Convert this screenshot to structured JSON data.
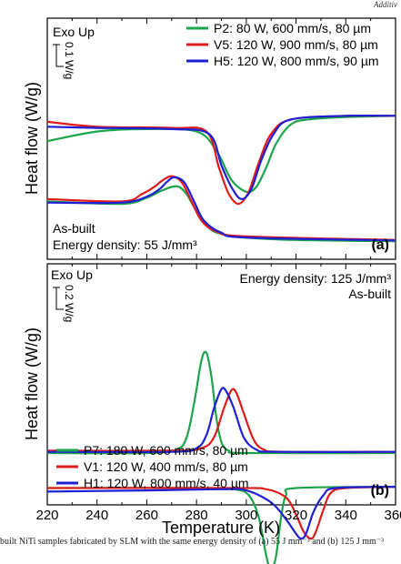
{
  "corner_label": "Additiv",
  "caption": "built NiTi samples fabricated by SLM with the same energy density of (a) 55 J mm⁻³ and (b) 125 J mm⁻³",
  "shared": {
    "xlabel": "Temperature (K)",
    "ylabel": "Heat flow (W/g)",
    "xlim": [
      220,
      360
    ],
    "xticks": [
      220,
      240,
      260,
      280,
      300,
      320,
      340,
      360
    ]
  },
  "chart_data": [
    {
      "type": "line",
      "panel_label": "(a)",
      "note_top": "Exo Up",
      "scale_bar": "0.1 W/g",
      "note_bottom_1": "As-built",
      "note_bottom_2": "Energy density: 55 J/mm³",
      "legend_position": "top-right",
      "series": [
        {
          "name": "P2: 80 W, 600 mm/s, 80 µm",
          "color": "#1aa54a",
          "cooling": [
            [
              220,
              0.76
            ],
            [
              250,
              0.77
            ],
            [
              260,
              0.745
            ],
            [
              265,
              0.72
            ],
            [
              270,
              0.7
            ],
            [
              273,
              0.7
            ],
            [
              276,
              0.73
            ],
            [
              280,
              0.8
            ],
            [
              285,
              0.87
            ],
            [
              290,
              0.895
            ],
            [
              300,
              0.91
            ],
            [
              320,
              0.92
            ],
            [
              360,
              0.925
            ]
          ],
          "heating": [
            [
              220,
              0.51
            ],
            [
              240,
              0.47
            ],
            [
              260,
              0.46
            ],
            [
              280,
              0.47
            ],
            [
              288,
              0.55
            ],
            [
              294,
              0.67
            ],
            [
              300,
              0.72
            ],
            [
              304,
              0.7
            ],
            [
              308,
              0.62
            ],
            [
              312,
              0.52
            ],
            [
              318,
              0.44
            ],
            [
              325,
              0.42
            ],
            [
              340,
              0.41
            ],
            [
              360,
              0.405
            ]
          ]
        },
        {
          "name": "V5: 120 W, 900 mm/s, 80 µm",
          "color": "#e01b1b",
          "cooling": [
            [
              220,
              0.75
            ],
            [
              250,
              0.76
            ],
            [
              258,
              0.73
            ],
            [
              263,
              0.7
            ],
            [
              266,
              0.675
            ],
            [
              270,
              0.655
            ],
            [
              274,
              0.68
            ],
            [
              278,
              0.76
            ],
            [
              282,
              0.84
            ],
            [
              288,
              0.885
            ],
            [
              300,
              0.905
            ],
            [
              360,
              0.92
            ]
          ],
          "heating": [
            [
              220,
              0.43
            ],
            [
              240,
              0.45
            ],
            [
              270,
              0.455
            ],
            [
              284,
              0.47
            ],
            [
              289,
              0.62
            ],
            [
              293,
              0.73
            ],
            [
              297,
              0.77
            ],
            [
              301,
              0.72
            ],
            [
              305,
              0.6
            ],
            [
              310,
              0.48
            ],
            [
              318,
              0.42
            ],
            [
              340,
              0.405
            ],
            [
              360,
              0.405
            ]
          ]
        },
        {
          "name": "H5: 120 W, 800 mm/s, 90 µm",
          "color": "#1f1fd6",
          "cooling": [
            [
              220,
              0.765
            ],
            [
              250,
              0.765
            ],
            [
              260,
              0.74
            ],
            [
              265,
              0.71
            ],
            [
              268,
              0.68
            ],
            [
              271,
              0.66
            ],
            [
              275,
              0.68
            ],
            [
              279,
              0.76
            ],
            [
              283,
              0.84
            ],
            [
              290,
              0.89
            ],
            [
              300,
              0.91
            ],
            [
              360,
              0.922
            ]
          ],
          "heating": [
            [
              220,
              0.45
            ],
            [
              240,
              0.455
            ],
            [
              270,
              0.46
            ],
            [
              285,
              0.48
            ],
            [
              290,
              0.61
            ],
            [
              294,
              0.7
            ],
            [
              298,
              0.75
            ],
            [
              302,
              0.71
            ],
            [
              306,
              0.59
            ],
            [
              311,
              0.48
            ],
            [
              318,
              0.42
            ],
            [
              340,
              0.405
            ],
            [
              360,
              0.405
            ]
          ]
        }
      ]
    },
    {
      "type": "line",
      "panel_label": "(b)",
      "note_top": "Exo Up",
      "scale_bar": "0.2 W/g",
      "note_top_right_1": "Energy density: 125 J/mm³",
      "note_top_right_2": "As-built",
      "legend_position": "bottom-left",
      "series": [
        {
          "name": "P7: 180 W, 600 mm/s, 80 µm",
          "color": "#1aa54a",
          "cooling": [
            [
              220,
              0.785
            ],
            [
              260,
              0.785
            ],
            [
              272,
              0.77
            ],
            [
              276,
              0.72
            ],
            [
              279,
              0.58
            ],
            [
              282,
              0.4
            ],
            [
              284,
              0.37
            ],
            [
              286,
              0.47
            ],
            [
              288,
              0.64
            ],
            [
              290,
              0.74
            ],
            [
              293,
              0.775
            ],
            [
              300,
              0.785
            ],
            [
              360,
              0.785
            ]
          ],
          "heating": [
            [
              220,
              0.93
            ],
            [
              280,
              0.93
            ],
            [
              295,
              0.935
            ],
            [
              301,
              0.96
            ],
            [
              305,
              1.05
            ],
            [
              308,
              1.21
            ],
            [
              310,
              1.27
            ],
            [
              312,
              1.21
            ],
            [
              314,
              1.05
            ],
            [
              316,
              0.96
            ],
            [
              320,
              0.93
            ],
            [
              360,
              0.925
            ]
          ]
        },
        {
          "name": "V1: 120 W, 400 mm/s, 80 µm",
          "color": "#e01b1b",
          "cooling": [
            [
              220,
              0.775
            ],
            [
              270,
              0.775
            ],
            [
              282,
              0.765
            ],
            [
              287,
              0.72
            ],
            [
              291,
              0.6
            ],
            [
              294,
              0.525
            ],
            [
              296,
              0.535
            ],
            [
              299,
              0.62
            ],
            [
              303,
              0.73
            ],
            [
              307,
              0.77
            ],
            [
              315,
              0.78
            ],
            [
              360,
              0.78
            ]
          ],
          "heating": [
            [
              220,
              0.93
            ],
            [
              295,
              0.93
            ],
            [
              308,
              0.935
            ],
            [
              316,
              0.97
            ],
            [
              320,
              1.04
            ],
            [
              323,
              1.11
            ],
            [
              326,
              1.14
            ],
            [
              328,
              1.11
            ],
            [
              331,
              1.02
            ],
            [
              334,
              0.95
            ],
            [
              340,
              0.93
            ],
            [
              360,
              0.925
            ]
          ]
        },
        {
          "name": "H1: 120 W, 800 mm/s, 40 µm",
          "color": "#1f1fd6",
          "cooling": [
            [
              220,
              0.78
            ],
            [
              270,
              0.78
            ],
            [
              280,
              0.765
            ],
            [
              284,
              0.71
            ],
            [
              287,
              0.6
            ],
            [
              290,
              0.52
            ],
            [
              292,
              0.53
            ],
            [
              295,
              0.6
            ],
            [
              299,
              0.72
            ],
            [
              304,
              0.77
            ],
            [
              312,
              0.78
            ],
            [
              360,
              0.78
            ]
          ],
          "heating": [
            [
              220,
              0.945
            ],
            [
              260,
              0.94
            ],
            [
              290,
              0.935
            ],
            [
              300,
              0.94
            ],
            [
              310,
              0.99
            ],
            [
              316,
              1.06
            ],
            [
              320,
              1.12
            ],
            [
              322,
              1.14
            ],
            [
              324,
              1.12
            ],
            [
              327,
              1.03
            ],
            [
              331,
              0.96
            ],
            [
              336,
              0.93
            ],
            [
              360,
              0.925
            ]
          ]
        }
      ]
    }
  ]
}
